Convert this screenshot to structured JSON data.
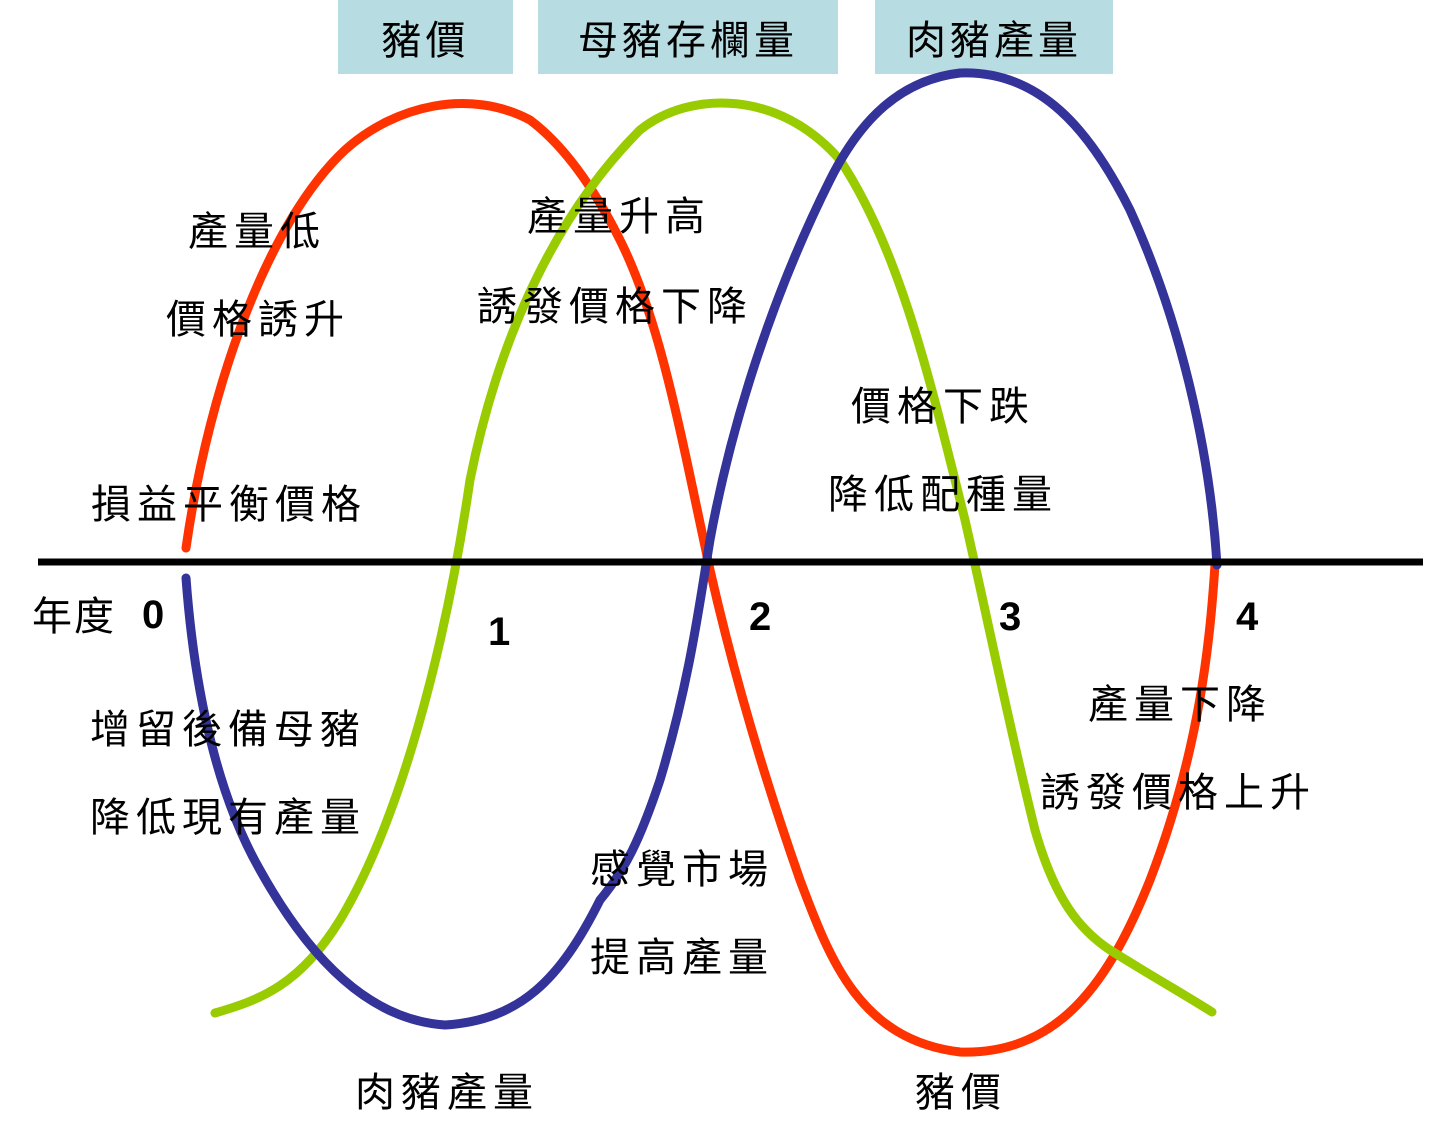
{
  "legend": {
    "price": "豬價",
    "sow_inventory": "母豬存欄量",
    "pork_output": "肉豬產量"
  },
  "axis": {
    "year_label": "年度",
    "ticks": [
      "0",
      "1",
      "2",
      "3",
      "4"
    ]
  },
  "annotations": {
    "low_output_line1": "產量低",
    "low_output_line2": "價格誘升",
    "output_rise_line1": "產量升高",
    "output_rise_line2": "誘發價格下降",
    "price_fall_line1": "價格下跌",
    "price_fall_line2": "降低配種量",
    "breakeven": "損益平衡價格",
    "retain_sows_line1": "增留後備母豬",
    "retain_sows_line2": "降低現有產量",
    "market_feel_line1": "感覺市場",
    "market_feel_line2": "提高產量",
    "output_drop_line1": "產量下降",
    "output_drop_line2": "誘發價格上升",
    "bottom_pork_output": "肉豬產量",
    "bottom_price": "豬價"
  },
  "colors": {
    "price": "#ff3300",
    "sow_inventory": "#99cc00",
    "pork_output": "#333399",
    "legend_bg": "#b7dde3",
    "axis": "#000000"
  }
}
